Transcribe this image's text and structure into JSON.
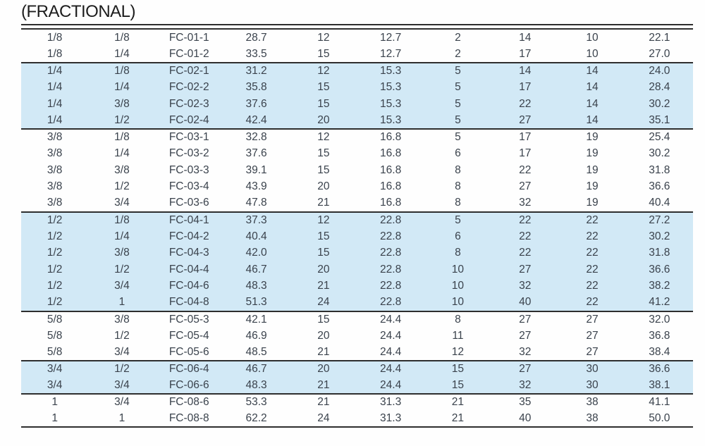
{
  "page": {
    "title": "(FRACTIONAL)"
  },
  "colors": {
    "rule": "#2e2e2e",
    "text": "#3a424c",
    "row_highlight": "#d2e9f6",
    "title": "#1d1d1d"
  },
  "table": {
    "column_count": 10,
    "groups": [
      {
        "model_series": "FC-01",
        "shaded": false,
        "rows": [
          [
            "1/8",
            "1/8",
            "FC-01-1",
            "28.7",
            "12",
            "12.7",
            "2",
            "14",
            "10",
            "22.1"
          ],
          [
            "1/8",
            "1/4",
            "FC-01-2",
            "33.5",
            "15",
            "12.7",
            "2",
            "17",
            "10",
            "27.0"
          ]
        ]
      },
      {
        "model_series": "FC-02",
        "shaded": true,
        "rows": [
          [
            "1/4",
            "1/8",
            "FC-02-1",
            "31.2",
            "12",
            "15.3",
            "5",
            "14",
            "14",
            "24.0"
          ],
          [
            "1/4",
            "1/4",
            "FC-02-2",
            "35.8",
            "15",
            "15.3",
            "5",
            "17",
            "14",
            "28.4"
          ],
          [
            "1/4",
            "3/8",
            "FC-02-3",
            "37.6",
            "15",
            "15.3",
            "5",
            "22",
            "14",
            "30.2"
          ],
          [
            "1/4",
            "1/2",
            "FC-02-4",
            "42.4",
            "20",
            "15.3",
            "5",
            "27",
            "14",
            "35.1"
          ]
        ]
      },
      {
        "model_series": "FC-03",
        "shaded": false,
        "rows": [
          [
            "3/8",
            "1/8",
            "FC-03-1",
            "32.8",
            "12",
            "16.8",
            "5",
            "17",
            "19",
            "25.4"
          ],
          [
            "3/8",
            "1/4",
            "FC-03-2",
            "37.6",
            "15",
            "16.8",
            "6",
            "17",
            "19",
            "30.2"
          ],
          [
            "3/8",
            "3/8",
            "FC-03-3",
            "39.1",
            "15",
            "16.8",
            "8",
            "22",
            "19",
            "31.8"
          ],
          [
            "3/8",
            "1/2",
            "FC-03-4",
            "43.9",
            "20",
            "16.8",
            "8",
            "27",
            "19",
            "36.6"
          ],
          [
            "3/8",
            "3/4",
            "FC-03-6",
            "47.8",
            "21",
            "16.8",
            "8",
            "32",
            "19",
            "40.4"
          ]
        ]
      },
      {
        "model_series": "FC-04",
        "shaded": true,
        "rows": [
          [
            "1/2",
            "1/8",
            "FC-04-1",
            "37.3",
            "12",
            "22.8",
            "5",
            "22",
            "22",
            "27.2"
          ],
          [
            "1/2",
            "1/4",
            "FC-04-2",
            "40.4",
            "15",
            "22.8",
            "6",
            "22",
            "22",
            "30.2"
          ],
          [
            "1/2",
            "3/8",
            "FC-04-3",
            "42.0",
            "15",
            "22.8",
            "8",
            "22",
            "22",
            "31.8"
          ],
          [
            "1/2",
            "1/2",
            "FC-04-4",
            "46.7",
            "20",
            "22.8",
            "10",
            "27",
            "22",
            "36.6"
          ],
          [
            "1/2",
            "3/4",
            "FC-04-6",
            "48.3",
            "21",
            "22.8",
            "10",
            "32",
            "22",
            "38.2"
          ],
          [
            "1/2",
            "1",
            "FC-04-8",
            "51.3",
            "24",
            "22.8",
            "10",
            "40",
            "22",
            "41.2"
          ]
        ]
      },
      {
        "model_series": "FC-05",
        "shaded": false,
        "rows": [
          [
            "5/8",
            "3/8",
            "FC-05-3",
            "42.1",
            "15",
            "24.4",
            "8",
            "27",
            "27",
            "32.0"
          ],
          [
            "5/8",
            "1/2",
            "FC-05-4",
            "46.9",
            "20",
            "24.4",
            "11",
            "27",
            "27",
            "36.8"
          ],
          [
            "5/8",
            "3/4",
            "FC-05-6",
            "48.5",
            "21",
            "24.4",
            "12",
            "32",
            "27",
            "38.4"
          ]
        ]
      },
      {
        "model_series": "FC-06",
        "shaded": true,
        "rows": [
          [
            "3/4",
            "1/2",
            "FC-06-4",
            "46.7",
            "20",
            "24.4",
            "15",
            "27",
            "30",
            "36.6"
          ],
          [
            "3/4",
            "3/4",
            "FC-06-6",
            "48.3",
            "21",
            "24.4",
            "15",
            "32",
            "30",
            "38.1"
          ]
        ]
      },
      {
        "model_series": "FC-08",
        "shaded": false,
        "rows": [
          [
            "1",
            "3/4",
            "FC-08-6",
            "53.3",
            "21",
            "31.3",
            "21",
            "35",
            "38",
            "41.1"
          ],
          [
            "1",
            "1",
            "FC-08-8",
            "62.2",
            "24",
            "31.3",
            "21",
            "40",
            "38",
            "50.0"
          ]
        ]
      }
    ]
  }
}
